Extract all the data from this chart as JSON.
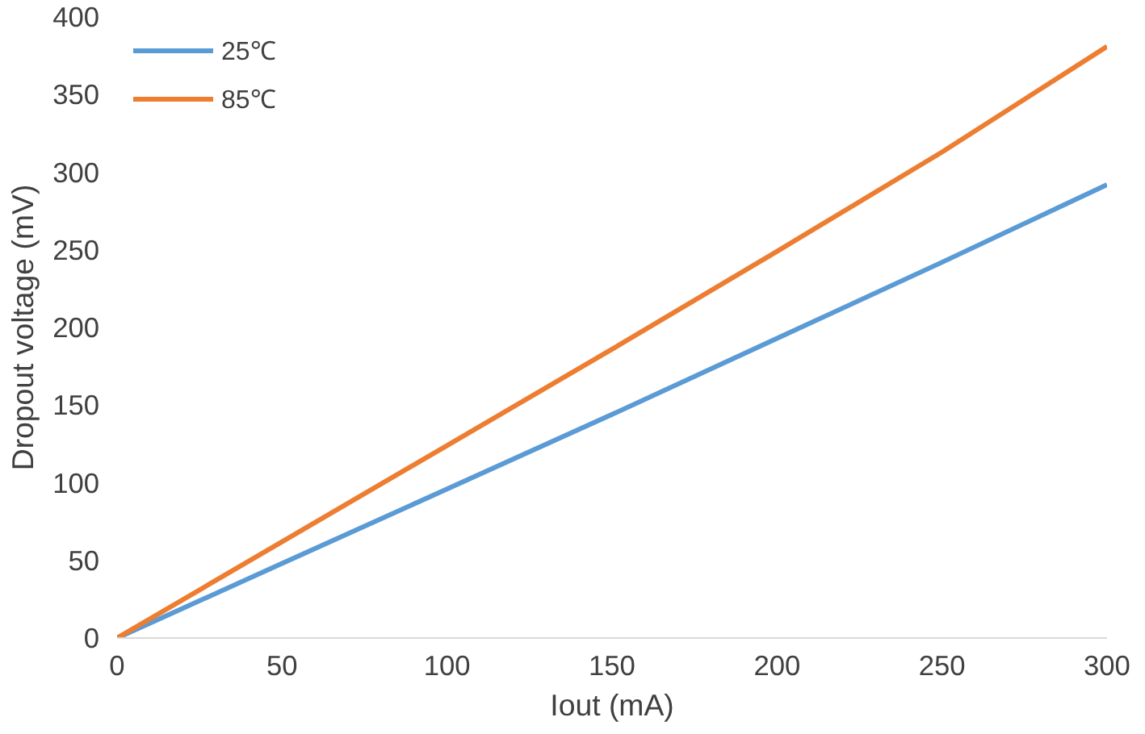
{
  "chart_data": {
    "type": "line",
    "xlabel": "Iout (mA)",
    "ylabel": "Dropout voltage (mV)",
    "x": [
      0,
      50,
      100,
      150,
      200,
      250,
      300
    ],
    "series": [
      {
        "name": "25℃",
        "color": "#5b9bd5",
        "values": [
          0,
          48,
          96,
          144,
          193,
          242,
          292
        ]
      },
      {
        "name": "85℃",
        "color": "#ed7d31",
        "values": [
          0,
          62,
          124,
          186,
          249,
          313,
          381
        ]
      }
    ],
    "xlim": [
      0,
      300
    ],
    "ylim": [
      0,
      400
    ],
    "xticks": [
      0,
      50,
      100,
      150,
      200,
      250,
      300
    ],
    "yticks": [
      0,
      50,
      100,
      150,
      200,
      250,
      300,
      350,
      400
    ],
    "grid": false,
    "legend": "top left",
    "marker": "none",
    "line_style": "solid"
  }
}
